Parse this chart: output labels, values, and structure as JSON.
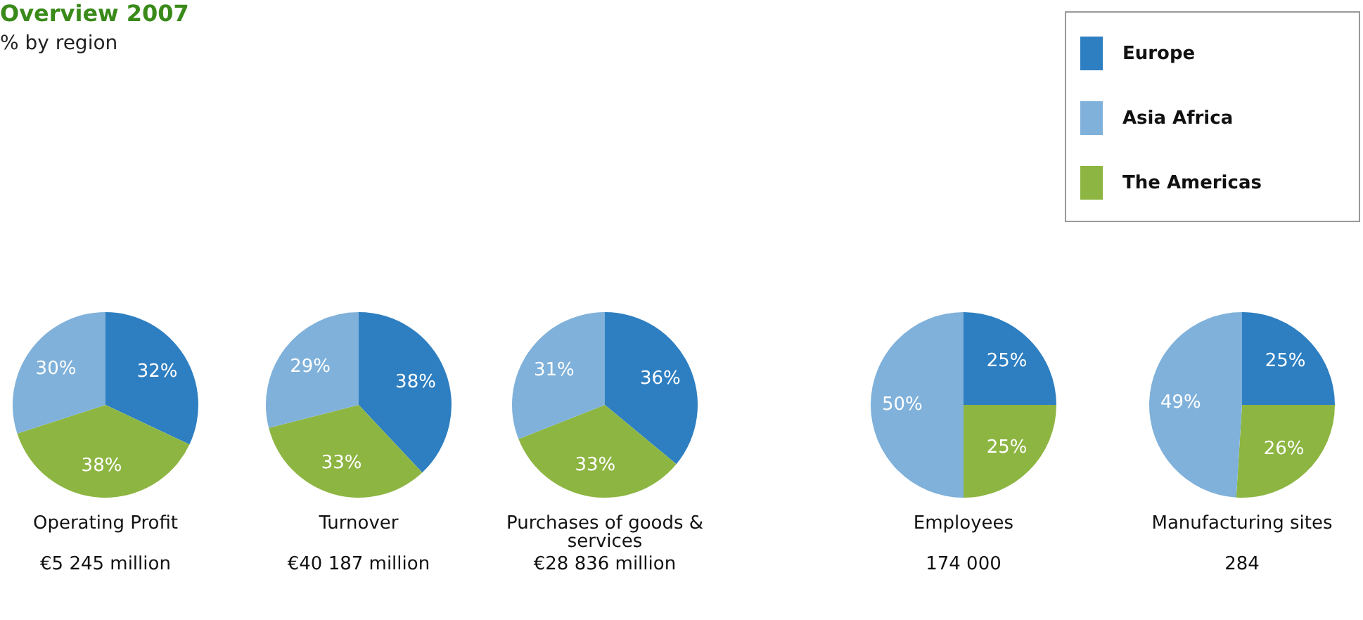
{
  "chart_data": [
    {
      "type": "other",
      "title": "Overview 2007",
      "subtitle": "% by region"
    },
    {
      "type": "pie",
      "title": "Operating Profit",
      "annotations": [
        "€5 245 million"
      ],
      "categories": [
        "Europe",
        "Asia Africa",
        "The Americas"
      ],
      "values": [
        32,
        30,
        38
      ],
      "value_labels": [
        "32%",
        "30%",
        "38%"
      ],
      "colors": [
        "#2e7fc1",
        "#7fb1da",
        "#8db542"
      ],
      "legend": "top right"
    },
    {
      "type": "pie",
      "title": "Turnover",
      "annotations": [
        "€40 187 million"
      ],
      "categories": [
        null,
        null,
        null
      ],
      "values": [
        38,
        29,
        33
      ],
      "value_labels": [
        "38%",
        "29%",
        "33%"
      ],
      "colors": [
        "#2e7fc1",
        "#7fb1da",
        "#8db542"
      ]
    },
    {
      "type": "pie",
      "title": "Purchases of goods & services",
      "annotations": [
        "€28 836 million"
      ],
      "categories": [
        null,
        null,
        null
      ],
      "values": [
        36,
        31,
        33
      ],
      "value_labels": [
        "36%",
        "31%",
        "33%"
      ],
      "colors": [
        "#2e7fc1",
        "#7fb1da",
        "#8db542"
      ]
    },
    {
      "type": "pie",
      "title": "Employees",
      "annotations": [
        "174 000"
      ],
      "categories": [
        null,
        null,
        null
      ],
      "values": [
        25,
        50,
        25
      ],
      "value_labels": [
        "25%",
        "50%",
        "25%"
      ],
      "colors": [
        "#2e7fc1",
        "#7fb1da",
        "#8db542"
      ]
    },
    {
      "type": "pie",
      "title": "Manufacturing sites",
      "annotations": [
        "284"
      ],
      "categories": [
        null,
        null,
        null
      ],
      "values": [
        25,
        49,
        26
      ],
      "value_labels": [
        "25%",
        "49%",
        "26%"
      ],
      "colors": [
        "#2e7fc1",
        "#7fb1da",
        "#8db542"
      ]
    }
  ]
}
